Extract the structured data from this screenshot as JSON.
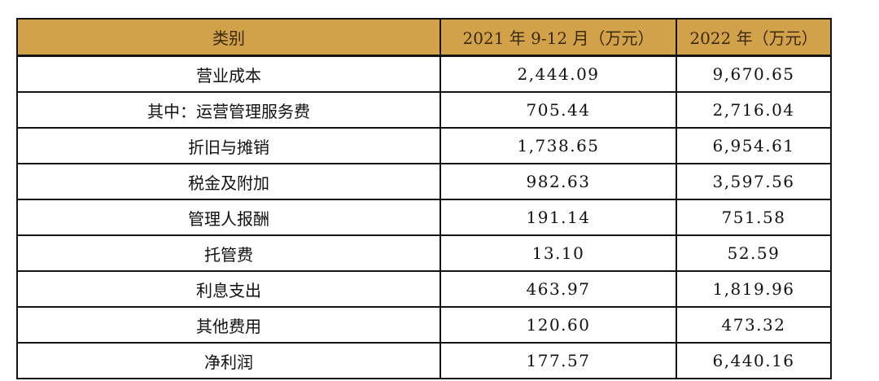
{
  "page": {
    "background_color": "#ffffff"
  },
  "table": {
    "style": {
      "header_background_color": "#d2a24a",
      "header_text_color": "#3a2808",
      "body_text_color": "#111111",
      "border_color": "#141414"
    },
    "columns": {
      "category": "类别",
      "period_2021": "2021 年 9-12 月（万元）",
      "year_2022": "2022 年（万元）"
    },
    "rows": [
      {
        "category": "营业成本",
        "period_2021": "2,444.09",
        "year_2022": "9,670.65"
      },
      {
        "category": "其中：运营管理服务费",
        "period_2021": "705.44",
        "year_2022": "2,716.04"
      },
      {
        "category": "折旧与摊销",
        "period_2021": "1,738.65",
        "year_2022": "6,954.61"
      },
      {
        "category": "税金及附加",
        "period_2021": "982.63",
        "year_2022": "3,597.56"
      },
      {
        "category": "管理人报酬",
        "period_2021": "191.14",
        "year_2022": "751.58"
      },
      {
        "category": "托管费",
        "period_2021": "13.10",
        "year_2022": "52.59"
      },
      {
        "category": "利息支出",
        "period_2021": "463.97",
        "year_2022": "1,819.96"
      },
      {
        "category": "其他费用",
        "period_2021": "120.60",
        "year_2022": "473.32"
      },
      {
        "category": "净利润",
        "period_2021": "177.57",
        "year_2022": "6,440.16"
      }
    ]
  }
}
